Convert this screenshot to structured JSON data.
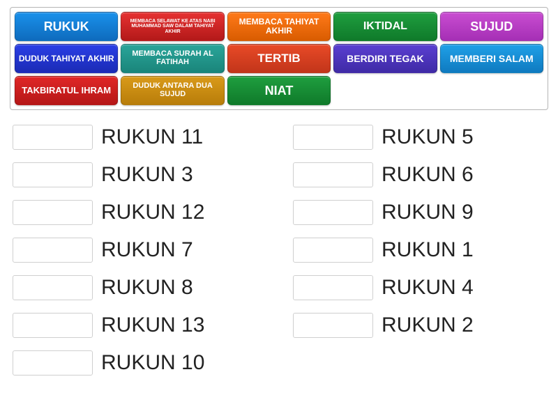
{
  "bank": {
    "border_color": "#b5b5b5",
    "tiles": [
      {
        "label": "RUKUK",
        "bg": "#1a91eb",
        "bg2": "#0e6bbd",
        "font_size": 18
      },
      {
        "label": "MEMBACA SELAWAT KE ATAS NABI MUHAMMAD SAW DALAM TAHIYAT AKHIR",
        "bg": "#e63232",
        "bg2": "#b31919",
        "font_size": 7
      },
      {
        "label": "MEMBACA TAHIYAT AKHIR",
        "bg": "#ff7a1a",
        "bg2": "#d95c00",
        "font_size": 12
      },
      {
        "label": "IKTIDAL",
        "bg": "#1f9e3f",
        "bg2": "#0f7a2a",
        "font_size": 16
      },
      {
        "label": "SUJUD",
        "bg": "#c94dd1",
        "bg2": "#a52fb5",
        "font_size": 18
      },
      {
        "label": "DUDUK TAHIYAT AKHIR",
        "bg": "#2a3fe6",
        "bg2": "#1b2bb5",
        "font_size": 12
      },
      {
        "label": "MEMBACA SURAH AL FATIHAH",
        "bg": "#2aa59a",
        "bg2": "#1a857a",
        "font_size": 11
      },
      {
        "label": "TERTIB",
        "bg": "#e84a27",
        "bg2": "#c2351a",
        "font_size": 17
      },
      {
        "label": "BERDIRI TEGAK",
        "bg": "#5a3fd1",
        "bg2": "#3f2aa6",
        "font_size": 14
      },
      {
        "label": "MEMBERI SALAM",
        "bg": "#1fa0e8",
        "bg2": "#0f7ac0",
        "font_size": 14
      },
      {
        "label": "TAKBIRATUL IHRAM",
        "bg": "#e02727",
        "bg2": "#b51616",
        "font_size": 13
      },
      {
        "label": "DUDUK ANTARA DUA SUJUD",
        "bg": "#d99a1a",
        "bg2": "#b87d0a",
        "font_size": 11
      },
      {
        "label": "NIAT",
        "bg": "#1f9e3f",
        "bg2": "#0f7a2a",
        "font_size": 18
      }
    ]
  },
  "slots": {
    "left": [
      {
        "label": "RUKUN 11"
      },
      {
        "label": "RUKUN 3"
      },
      {
        "label": "RUKUN 12"
      },
      {
        "label": "RUKUN 7"
      },
      {
        "label": "RUKUN 8"
      },
      {
        "label": "RUKUN 13"
      },
      {
        "label": "RUKUN 10"
      }
    ],
    "right": [
      {
        "label": "RUKUN 5"
      },
      {
        "label": "RUKUN 6"
      },
      {
        "label": "RUKUN 9"
      },
      {
        "label": "RUKUN 1"
      },
      {
        "label": "RUKUN 4"
      },
      {
        "label": "RUKUN 2"
      }
    ]
  },
  "styles": {
    "slot_label_color": "#222222",
    "slot_label_fontsize": 30,
    "drop_border": "#cfcfcf",
    "background": "#ffffff"
  }
}
